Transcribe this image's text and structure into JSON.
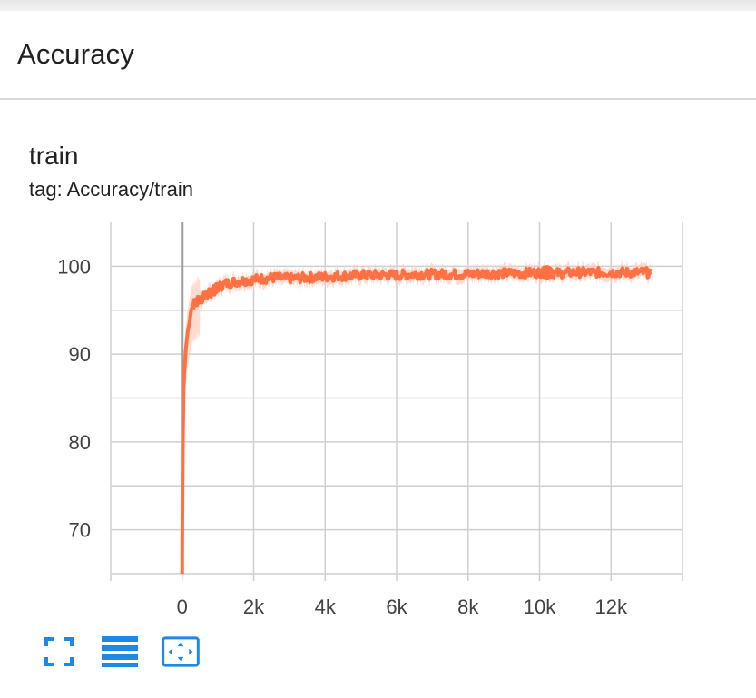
{
  "section": {
    "title": "Accuracy"
  },
  "card": {
    "title": "train",
    "tag": "tag: Accuracy/train"
  },
  "colors": {
    "series": "#ff7043",
    "band": "#ffccbc",
    "grid": "#cfcfcf",
    "zero_line": "#9e9e9e",
    "icon": "#1e88e5"
  },
  "toolbar": {
    "icons": [
      "fullscreen-icon",
      "list-icon",
      "fit-domain-icon"
    ]
  },
  "chart_data": {
    "type": "line",
    "title": "train",
    "xlabel": "",
    "ylabel": "",
    "xlim": [
      -2000,
      14000
    ],
    "ylim": [
      65,
      105
    ],
    "x_ticks": [
      0,
      2000,
      4000,
      6000,
      8000,
      10000,
      12000
    ],
    "x_tick_labels": [
      "0",
      "2k",
      "4k",
      "6k",
      "8k",
      "10k",
      "12k"
    ],
    "y_ticks": [
      70,
      80,
      90,
      100
    ],
    "y_tick_labels": [
      "70",
      "80",
      "90",
      "100"
    ],
    "grid": true,
    "legend": "none",
    "series": [
      {
        "x": [
          0,
          20,
          40,
          60,
          80,
          100,
          150,
          200,
          250,
          300,
          400,
          500,
          600,
          700,
          800,
          900,
          1000,
          1200,
          1400,
          1600,
          1800,
          2000,
          2300,
          2600,
          3000,
          3500,
          4000,
          4500,
          5000,
          5500,
          6000,
          6500,
          7000,
          7500,
          8000,
          8500,
          9000,
          9500,
          10000,
          10200,
          10500,
          11000,
          11500,
          12000,
          12500,
          13000,
          13100
        ],
        "values": [
          68,
          80,
          86,
          88,
          89,
          90.5,
          92.5,
          93.5,
          95,
          95.5,
          96,
          96.2,
          96.5,
          96.8,
          97,
          97.3,
          97.6,
          98,
          98.2,
          98.3,
          98.4,
          98.5,
          98.6,
          98.7,
          98.6,
          98.7,
          98.8,
          98.9,
          99,
          99,
          99,
          99.1,
          99.1,
          99.1,
          99.1,
          99.2,
          99.2,
          99.2,
          99.3,
          99.3,
          99.2,
          99.3,
          99.3,
          99.3,
          99.3,
          99.3,
          99.2
        ]
      }
    ]
  }
}
